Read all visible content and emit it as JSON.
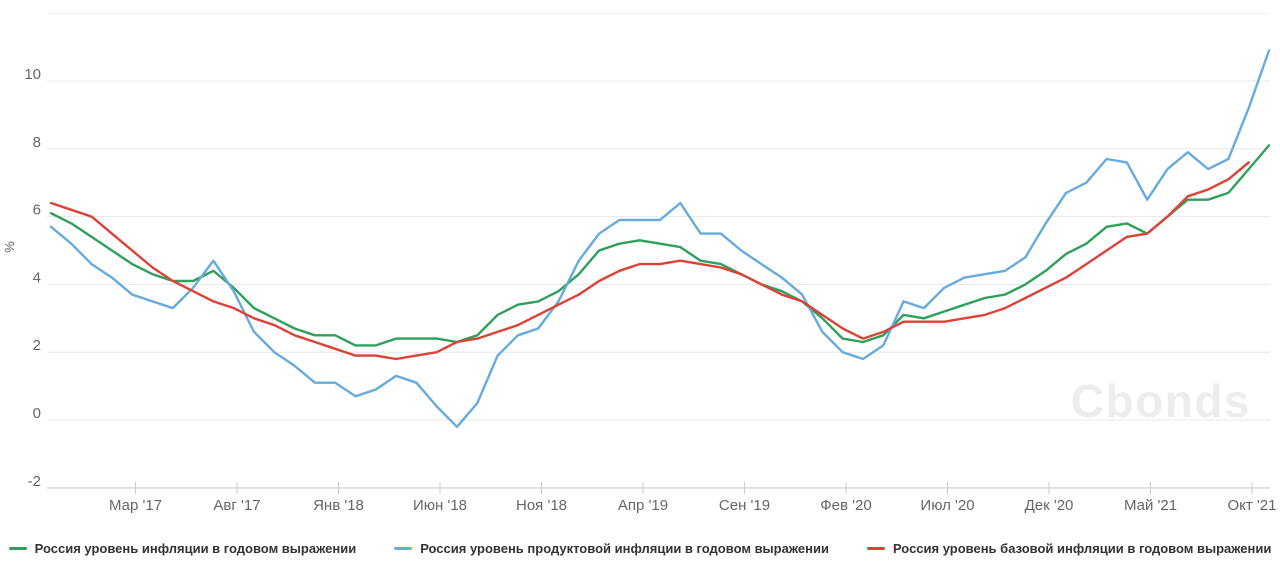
{
  "chart_data": {
    "type": "line",
    "title": "",
    "ylabel": "%",
    "ylim": [
      -2,
      12
    ],
    "yticks_labeled": [
      -2,
      0,
      2,
      4,
      6,
      8,
      10
    ],
    "gridlines": [
      -2,
      0,
      2,
      4,
      6,
      8,
      10,
      12
    ],
    "grid": true,
    "legend_position": "bottom",
    "watermark": "Cbonds",
    "months": [
      "2016-10",
      "2016-11",
      "2016-12",
      "2017-01",
      "2017-02",
      "2017-03",
      "2017-04",
      "2017-05",
      "2017-06",
      "2017-07",
      "2017-08",
      "2017-09",
      "2017-10",
      "2017-11",
      "2017-12",
      "2018-01",
      "2018-02",
      "2018-03",
      "2018-04",
      "2018-05",
      "2018-06",
      "2018-07",
      "2018-08",
      "2018-09",
      "2018-10",
      "2018-11",
      "2018-12",
      "2019-01",
      "2019-02",
      "2019-03",
      "2019-04",
      "2019-05",
      "2019-06",
      "2019-07",
      "2019-08",
      "2019-09",
      "2019-10",
      "2019-11",
      "2019-12",
      "2020-01",
      "2020-02",
      "2020-03",
      "2020-04",
      "2020-05",
      "2020-06",
      "2020-07",
      "2020-08",
      "2020-09",
      "2020-10",
      "2020-11",
      "2020-12",
      "2021-01",
      "2021-02",
      "2021-03",
      "2021-04",
      "2021-05",
      "2021-06",
      "2021-07",
      "2021-08",
      "2021-09",
      "2021-10"
    ],
    "x_tick_labels": [
      "Мар '17",
      "Авг '17",
      "Янв '18",
      "Июн '18",
      "Ноя '18",
      "Апр '19",
      "Сен '19",
      "Фев '20",
      "Июл '20",
      "Дек '20",
      "Май '21",
      "Окт '21"
    ],
    "x_tick_indices": [
      5,
      10,
      15,
      20,
      25,
      30,
      35,
      40,
      45,
      50,
      55,
      60
    ],
    "series": [
      {
        "name": "Россия уровень инфляции в годовом выражении",
        "color": "#2ea05c",
        "values": [
          6.1,
          5.8,
          5.4,
          5.0,
          4.6,
          4.3,
          4.1,
          4.1,
          4.4,
          3.9,
          3.3,
          3.0,
          2.7,
          2.5,
          2.5,
          2.2,
          2.2,
          2.4,
          2.4,
          2.4,
          2.3,
          2.5,
          3.1,
          3.4,
          3.5,
          3.8,
          4.3,
          5.0,
          5.2,
          5.3,
          5.2,
          5.1,
          4.7,
          4.6,
          4.3,
          4.0,
          3.8,
          3.5,
          3.0,
          2.4,
          2.3,
          2.5,
          3.1,
          3.0,
          3.2,
          3.4,
          3.6,
          3.7,
          4.0,
          4.4,
          4.9,
          5.2,
          5.7,
          5.8,
          5.5,
          6.0,
          6.5,
          6.5,
          6.7,
          7.4,
          8.1
        ]
      },
      {
        "name": "Россия уровень продуктовой инфляции в годовом выражении",
        "color": "#66abdc",
        "values": [
          5.7,
          5.2,
          4.6,
          4.2,
          3.7,
          3.5,
          3.3,
          3.9,
          4.7,
          3.8,
          2.6,
          2.0,
          1.6,
          1.1,
          1.1,
          0.7,
          0.9,
          1.3,
          1.1,
          0.4,
          -0.2,
          0.5,
          1.9,
          2.5,
          2.7,
          3.5,
          4.7,
          5.5,
          5.9,
          5.9,
          5.9,
          6.4,
          5.5,
          5.5,
          5.0,
          4.6,
          4.2,
          3.7,
          2.6,
          2.0,
          1.8,
          2.2,
          3.5,
          3.3,
          3.9,
          4.2,
          4.3,
          4.4,
          4.8,
          5.8,
          6.7,
          7.0,
          7.7,
          7.6,
          6.5,
          7.4,
          7.9,
          7.4,
          7.7,
          9.2,
          10.9
        ]
      },
      {
        "name": "Россия уровень базовой инфляции в годовом выражении",
        "color": "#dc4238",
        "values": [
          6.4,
          6.2,
          6.0,
          5.5,
          5.0,
          4.5,
          4.1,
          3.8,
          3.5,
          3.3,
          3.0,
          2.8,
          2.5,
          2.3,
          2.1,
          1.9,
          1.9,
          1.8,
          1.9,
          2.0,
          2.3,
          2.4,
          2.6,
          2.8,
          3.1,
          3.4,
          3.7,
          4.1,
          4.4,
          4.6,
          4.6,
          4.7,
          4.6,
          4.5,
          4.3,
          4.0,
          3.7,
          3.5,
          3.1,
          2.7,
          2.4,
          2.6,
          2.9,
          2.9,
          2.9,
          3.0,
          3.1,
          3.3,
          3.6,
          3.9,
          4.2,
          4.6,
          5.0,
          5.4,
          5.5,
          6.0,
          6.6,
          6.8,
          7.1,
          7.6
        ]
      }
    ]
  },
  "colors": {
    "axis_text": "#666666",
    "grid_line": "#e8e8e8",
    "grid_line_top": "#efefef",
    "axis_line": "#cccccc",
    "legend_text": "#333333",
    "watermark": "#ededed",
    "background": "#ffffff"
  }
}
